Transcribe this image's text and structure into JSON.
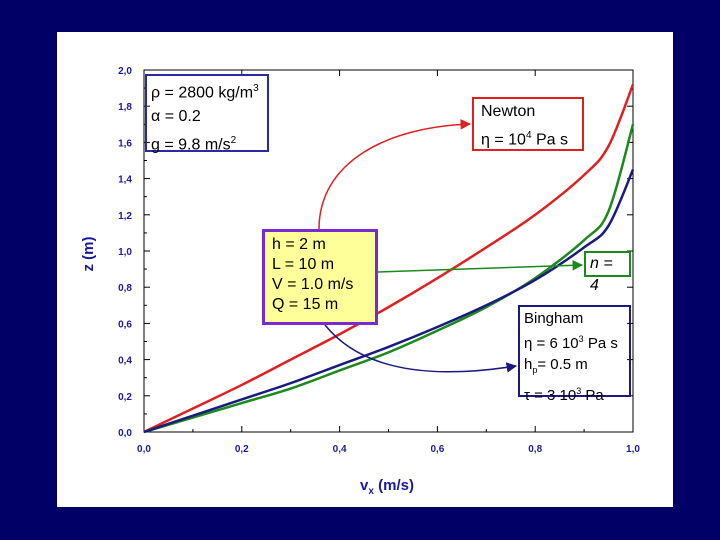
{
  "chart_data": {
    "type": "line",
    "title": "",
    "xlabel_main": "v",
    "xlabel_sub": "x",
    "xlabel_unit": " (m/s)",
    "ylabel": "z (m)",
    "xlim": [
      0.0,
      1.0
    ],
    "ylim": [
      0.0,
      2.0
    ],
    "x_ticks": [
      "0,0",
      "0,2",
      "0,4",
      "0,6",
      "0,8",
      "1,0"
    ],
    "x_tick_values": [
      0.0,
      0.2,
      0.4,
      0.6,
      0.8,
      1.0
    ],
    "y_ticks": [
      "0,0",
      "0,2",
      "0,4",
      "0,6",
      "0,8",
      "1,0",
      "1,2",
      "1,4",
      "1,6",
      "1,8",
      "2,0"
    ],
    "y_tick_values": [
      0.0,
      0.2,
      0.4,
      0.6,
      0.8,
      1.0,
      1.2,
      1.4,
      1.6,
      1.8,
      2.0
    ],
    "grid": false,
    "series": [
      {
        "name": "Newton",
        "color": "#e02020",
        "x": [
          0.0,
          0.1,
          0.2,
          0.3,
          0.4,
          0.5,
          0.6,
          0.7,
          0.8,
          0.9,
          0.95,
          1.0
        ],
        "y": [
          0.0,
          0.13,
          0.26,
          0.4,
          0.54,
          0.69,
          0.85,
          1.02,
          1.2,
          1.42,
          1.58,
          1.92
        ]
      },
      {
        "name": "n = 4",
        "color": "#1a8a1a",
        "x": [
          0.0,
          0.1,
          0.2,
          0.3,
          0.4,
          0.5,
          0.6,
          0.7,
          0.8,
          0.9,
          0.95,
          1.0
        ],
        "y": [
          0.0,
          0.08,
          0.16,
          0.24,
          0.34,
          0.44,
          0.56,
          0.69,
          0.85,
          1.06,
          1.22,
          1.7
        ]
      },
      {
        "name": "Bingham",
        "color": "#1a1a80",
        "x": [
          0.0,
          0.1,
          0.2,
          0.3,
          0.4,
          0.5,
          0.6,
          0.7,
          0.8,
          0.9,
          0.95,
          1.0
        ],
        "y": [
          0.0,
          0.09,
          0.18,
          0.27,
          0.37,
          0.47,
          0.58,
          0.7,
          0.84,
          1.02,
          1.14,
          1.45
        ]
      }
    ],
    "annotations": {
      "params": {
        "rho_sym": "ρ",
        "rho_val": " = 2800 kg/m",
        "rho_exp": "3",
        "alpha_sym": "α",
        "alpha_val": " = 0.2",
        "g_val": "g = 9.8 m/s",
        "g_exp": "2"
      },
      "newton": {
        "title": "Newton",
        "eta_sym": "η",
        "eta_val": " = 10",
        "eta_exp": "4",
        "eta_unit": " Pa s"
      },
      "geometry": {
        "line1": "h = 2 m",
        "line2": "L = 10 m",
        "line3": "V = 1.0 m/s",
        "line4": "Q = 15 m"
      },
      "power_law": {
        "label": "n = 4"
      },
      "bingham": {
        "title": "Bingham",
        "eta_sym": "η",
        "eta_val": " = 6 10",
        "eta_exp": "3",
        "eta_unit": " Pa s",
        "hp_main": "h",
        "hp_sub": "p",
        "hp_val": "= 0.5 m",
        "tau_sym": "τ",
        "tau_val": " = 3 10",
        "tau_exp": "3",
        "tau_unit": " Pa"
      }
    },
    "colors": {
      "background": "#000066",
      "axis_text": "#1a1aa0",
      "params_border": "#2a2aa0",
      "newton_border": "#e02020",
      "geometry_fill": "#ffff99",
      "geometry_border": "#7a2ad0",
      "power_law_border": "#1a8a1a",
      "bingham_border": "#1a1a80"
    }
  }
}
